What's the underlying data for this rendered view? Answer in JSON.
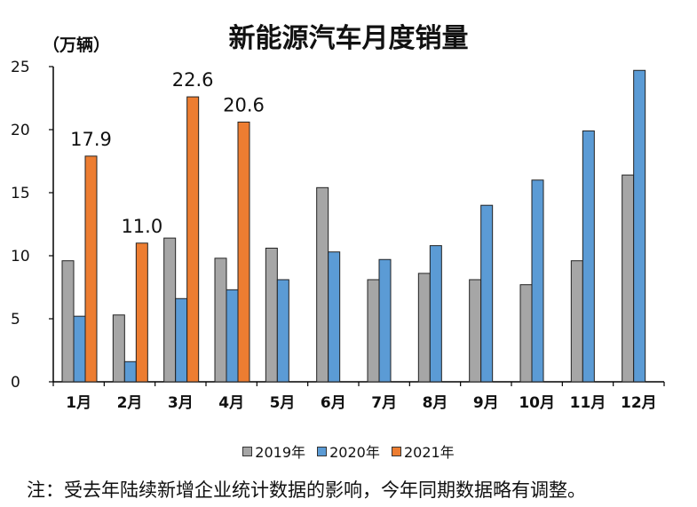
{
  "chart_data": {
    "type": "bar",
    "title": "新能源汽车月度销量",
    "ylabel": "（万辆）",
    "xlabel": "",
    "ylim": [
      0,
      25
    ],
    "yticks": [
      0,
      5,
      10,
      15,
      20,
      25
    ],
    "categories": [
      "1月",
      "2月",
      "3月",
      "4月",
      "5月",
      "6月",
      "7月",
      "8月",
      "9月",
      "10月",
      "11月",
      "12月"
    ],
    "series": [
      {
        "name": "2019年",
        "color": "#a6a6a6",
        "values": [
          9.6,
          5.3,
          11.4,
          9.8,
          10.6,
          15.4,
          8.1,
          8.6,
          8.1,
          7.7,
          9.6,
          16.4
        ]
      },
      {
        "name": "2020年",
        "color": "#5b9bd5",
        "values": [
          5.2,
          1.6,
          6.6,
          7.3,
          8.1,
          10.3,
          9.7,
          10.8,
          14.0,
          16.0,
          19.9,
          24.7
        ]
      },
      {
        "name": "2021年",
        "color": "#ed7d31",
        "values": [
          17.9,
          11.0,
          22.6,
          20.6,
          null,
          null,
          null,
          null,
          null,
          null,
          null,
          null
        ]
      }
    ],
    "data_labels": [
      "17.9",
      "11.0",
      "22.6",
      "20.6"
    ],
    "legend_position": "bottom"
  },
  "note": "注：受去年陆续新增企业统计数据的影响，今年同期数据略有调整。"
}
